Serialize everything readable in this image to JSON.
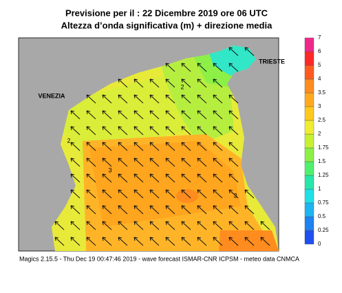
{
  "header": {
    "title": "Previsione per il  :  22 Dicembre  2019   ore 06 UTC",
    "subtitle": "Altezza d’onda significativa (m) + direzione media"
  },
  "colorbar": {
    "levels": [
      0,
      0.25,
      0.5,
      0.75,
      1,
      1.25,
      1.5,
      1.75,
      2,
      2.5,
      3,
      3.5,
      4,
      5,
      6,
      7
    ],
    "colors": [
      "#1e50f0",
      "#1e82f0",
      "#1eb4f0",
      "#1ee0e6",
      "#28e6aa",
      "#50f06e",
      "#8cf046",
      "#c8f032",
      "#f0ec32",
      "#ffc81e",
      "#ffaa1e",
      "#ff8c1e",
      "#ff5a1e",
      "#ff2828",
      "#f0288c"
    ]
  },
  "places": [
    "VENEZIA",
    "TRIESTE"
  ],
  "contours": [
    "2",
    "2",
    "3",
    "3"
  ],
  "footer": "Magics 2.15.5 - Thu Dec 19 00:47:46 2019 - wave forecast  ISMAR-CNR  ICPSM - meteo data  CNMCA"
}
